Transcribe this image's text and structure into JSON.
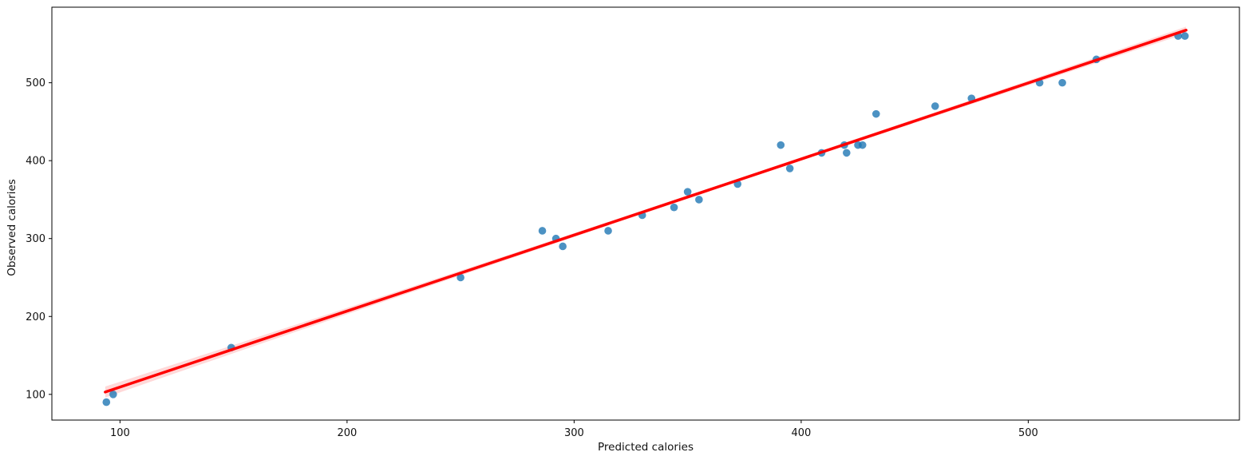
{
  "figure": {
    "background": "#ffffff",
    "spine_color": "#000000",
    "tick_color": "#000000",
    "text_color": "#111111"
  },
  "chart_data": {
    "type": "scatter",
    "title": "",
    "xlabel": "Predicted calories",
    "ylabel": "Observed calories",
    "xlim": [
      70,
      593
    ],
    "ylim": [
      67,
      597
    ],
    "x_ticks": [
      100,
      200,
      300,
      400,
      500
    ],
    "y_ticks": [
      100,
      200,
      300,
      400,
      500
    ],
    "grid": false,
    "legend": "none",
    "series": [
      {
        "name": "observations",
        "type": "scatter",
        "color": "#1f77b4",
        "opacity": 0.8,
        "marker_radius": 4.8,
        "points": [
          [
            94,
            90
          ],
          [
            97,
            100
          ],
          [
            149,
            160
          ],
          [
            250,
            250
          ],
          [
            286,
            310
          ],
          [
            292,
            300
          ],
          [
            295,
            290
          ],
          [
            315,
            310
          ],
          [
            330,
            330
          ],
          [
            344,
            340
          ],
          [
            350,
            360
          ],
          [
            355,
            350
          ],
          [
            372,
            370
          ],
          [
            391,
            420
          ],
          [
            395,
            390
          ],
          [
            409,
            410
          ],
          [
            419,
            420
          ],
          [
            420,
            410
          ],
          [
            425,
            420
          ],
          [
            427,
            420
          ],
          [
            433,
            460
          ],
          [
            459,
            470
          ],
          [
            475,
            480
          ],
          [
            505,
            500
          ],
          [
            515,
            500
          ],
          [
            530,
            530
          ],
          [
            566,
            560
          ],
          [
            569,
            560
          ]
        ]
      },
      {
        "name": "regression-line",
        "type": "line",
        "color": "#ff0000",
        "width": 3.5,
        "x": [
          93.5,
          569.5
        ],
        "y": [
          103,
          567.5
        ]
      },
      {
        "name": "confidence-band",
        "type": "band",
        "color": "#ff0000",
        "opacity": 0.15,
        "center_x": 374,
        "center_halfwidth": 2.2,
        "left_halfwidth": 7,
        "right_halfwidth": 4.5
      }
    ]
  }
}
